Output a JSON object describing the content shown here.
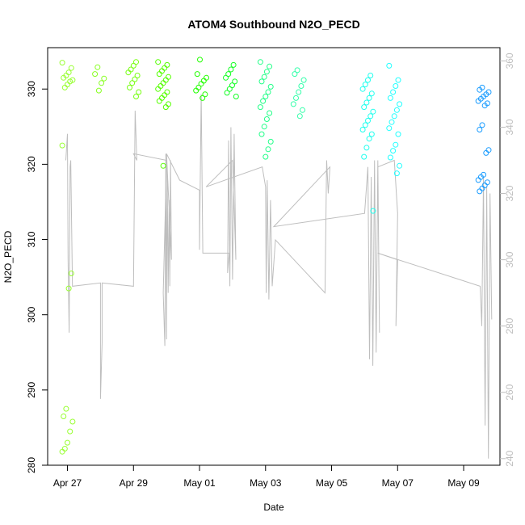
{
  "chart_data": {
    "type": "scatter",
    "title": "ATOM4 Southbound N2O_PECD",
    "xlabel": "Date",
    "ylabel": "N2O_PECD",
    "x_ticks": [
      "Apr 27",
      "Apr 29",
      "May 01",
      "May 03",
      "May 05",
      "May 07",
      "May 09"
    ],
    "x_tick_days": [
      0,
      2,
      4,
      6,
      8,
      10,
      12
    ],
    "xlim": [
      -0.6,
      13.1
    ],
    "ylim_left": [
      280,
      335.5
    ],
    "y_ticks_left": [
      280,
      290,
      300,
      310,
      320,
      330
    ],
    "ylim_right": [
      238,
      364
    ],
    "y_ticks_right": [
      240,
      260,
      280,
      300,
      320,
      340,
      360
    ],
    "right_axis_color": "#bebebe",
    "grid": false,
    "series": [
      {
        "kind": "points",
        "clusters": [
          {
            "x": 0.0,
            "color": "#99ff33",
            "y": [
              333.5,
              332.8,
              332.2,
              331.8,
              331.5,
              331.2,
              331.0,
              330.6,
              330.2,
              322.5,
              305.5,
              303.5,
              287.5,
              286.5,
              285.8,
              284.5,
              283.0,
              282.2,
              281.8
            ]
          },
          {
            "x": 0.95,
            "color": "#88ff22",
            "y": [
              332.9,
              332.0,
              331.4,
              330.8,
              329.8
            ]
          },
          {
            "x": 2.0,
            "color": "#77ff11",
            "y": [
              333.6,
              333.1,
              332.6,
              332.2,
              331.8,
              331.3,
              330.8,
              330.2,
              329.6,
              329.0
            ]
          },
          {
            "x": 2.9,
            "color": "#55ff00",
            "y": [
              333.6,
              333.2,
              332.8,
              332.4,
              332.0,
              331.6,
              331.2,
              330.8,
              330.4,
              330.0,
              329.6,
              329.2,
              328.8,
              328.4,
              328.0,
              327.6,
              319.8
            ]
          },
          {
            "x": 4.05,
            "color": "#22ff00",
            "y": [
              333.9,
              332.0,
              331.5,
              331.1,
              330.7,
              330.2,
              329.8,
              329.3,
              328.8
            ]
          },
          {
            "x": 4.95,
            "color": "#11ff22",
            "y": [
              333.2,
              332.6,
              332.0,
              331.5,
              331.0,
              330.5,
              330.0,
              329.5,
              329.0
            ]
          },
          {
            "x": 6.0,
            "color": "#22ff88",
            "y": [
              333.6,
              333.0,
              332.3,
              331.6,
              331.0,
              330.3,
              329.6,
              329.0,
              328.4,
              327.6,
              326.8,
              326.0,
              325.0,
              324.0,
              323.0,
              322.0,
              321.0
            ]
          },
          {
            "x": 7.0,
            "color": "#33ffaa",
            "y": [
              332.5,
              332.0,
              331.2,
              330.4,
              329.6,
              328.8,
              328.0,
              327.2,
              326.4
            ]
          },
          {
            "x": 9.1,
            "color": "#22ffee",
            "y": [
              331.8,
              331.2,
              330.6,
              330.0,
              329.4,
              328.8,
              328.2,
              327.6,
              327.0,
              326.4,
              325.8,
              325.2,
              324.6,
              324.0,
              323.4,
              322.2,
              321.0,
              313.8
            ]
          },
          {
            "x": 9.9,
            "color": "#22ffff",
            "y": [
              333.1,
              331.2,
              330.4,
              329.6,
              328.8,
              328.0,
              327.2,
              326.4,
              325.6,
              324.8,
              324.0,
              322.6,
              321.8,
              320.9,
              319.8,
              318.8
            ]
          },
          {
            "x": 12.6,
            "color": "#1a9cff",
            "y": [
              330.2,
              329.9,
              329.6,
              329.3,
              329.0,
              328.7,
              328.4,
              328.1,
              327.8,
              325.2,
              324.6,
              321.9,
              321.5,
              318.6,
              318.3,
              317.9,
              317.6,
              317.2,
              316.8,
              316.4
            ]
          }
        ]
      },
      {
        "kind": "line",
        "axis": "right",
        "color": "#bebebe",
        "points": [
          [
            -0.05,
            330
          ],
          [
            0.0,
            338
          ],
          [
            0.02,
            300
          ],
          [
            0.05,
            278
          ],
          [
            0.08,
            328
          ],
          [
            0.1,
            330
          ],
          [
            0.15,
            292
          ],
          [
            1.0,
            293
          ],
          [
            1.0,
            258
          ],
          [
            1.05,
            275
          ],
          [
            1.05,
            293
          ],
          [
            2.0,
            292
          ],
          [
            2.05,
            345
          ],
          [
            2.1,
            330
          ],
          [
            2.0,
            332
          ],
          [
            3.0,
            330
          ],
          [
            2.9,
            290
          ],
          [
            2.95,
            274
          ],
          [
            2.98,
            332
          ],
          [
            3.0,
            276
          ],
          [
            3.02,
            328
          ],
          [
            3.05,
            290
          ],
          [
            3.08,
            318
          ],
          [
            3.1,
            292
          ],
          [
            3.12,
            330
          ],
          [
            3.15,
            300
          ],
          [
            3.0,
            332
          ],
          [
            3.4,
            324
          ],
          [
            4.0,
            321
          ],
          [
            4.0,
            303
          ],
          [
            4.05,
            350
          ],
          [
            4.1,
            302
          ],
          [
            4.9,
            302
          ],
          [
            4.85,
            296
          ],
          [
            4.88,
            336
          ],
          [
            4.92,
            292
          ],
          [
            4.95,
            340
          ],
          [
            5.0,
            294
          ],
          [
            5.05,
            338
          ],
          [
            5.1,
            300
          ],
          [
            5.0,
            330
          ],
          [
            4.2,
            322
          ],
          [
            5.9,
            328
          ],
          [
            6.0,
            322
          ],
          [
            6.02,
            290
          ],
          [
            6.05,
            324
          ],
          [
            6.1,
            288
          ],
          [
            6.15,
            318
          ],
          [
            6.2,
            292
          ],
          [
            6.3,
            306
          ],
          [
            7.8,
            290
          ],
          [
            7.85,
            330
          ],
          [
            7.9,
            320
          ],
          [
            7.95,
            328
          ],
          [
            6.25,
            310
          ],
          [
            9.0,
            314
          ],
          [
            9.1,
            328
          ],
          [
            9.15,
            270
          ],
          [
            9.2,
            325
          ],
          [
            9.25,
            268
          ],
          [
            9.3,
            330
          ],
          [
            9.35,
            272
          ],
          [
            9.4,
            330
          ],
          [
            9.45,
            278
          ],
          [
            9.4,
            328
          ],
          [
            9.9,
            330
          ],
          [
            10.0,
            314
          ],
          [
            9.95,
            280
          ],
          [
            10.0,
            300
          ],
          [
            9.4,
            302
          ],
          [
            12.5,
            292
          ],
          [
            12.55,
            280
          ],
          [
            12.6,
            325
          ],
          [
            12.65,
            250
          ],
          [
            12.7,
            322
          ],
          [
            12.75,
            240
          ],
          [
            12.8,
            320
          ],
          [
            12.85,
            282
          ]
        ]
      }
    ]
  }
}
